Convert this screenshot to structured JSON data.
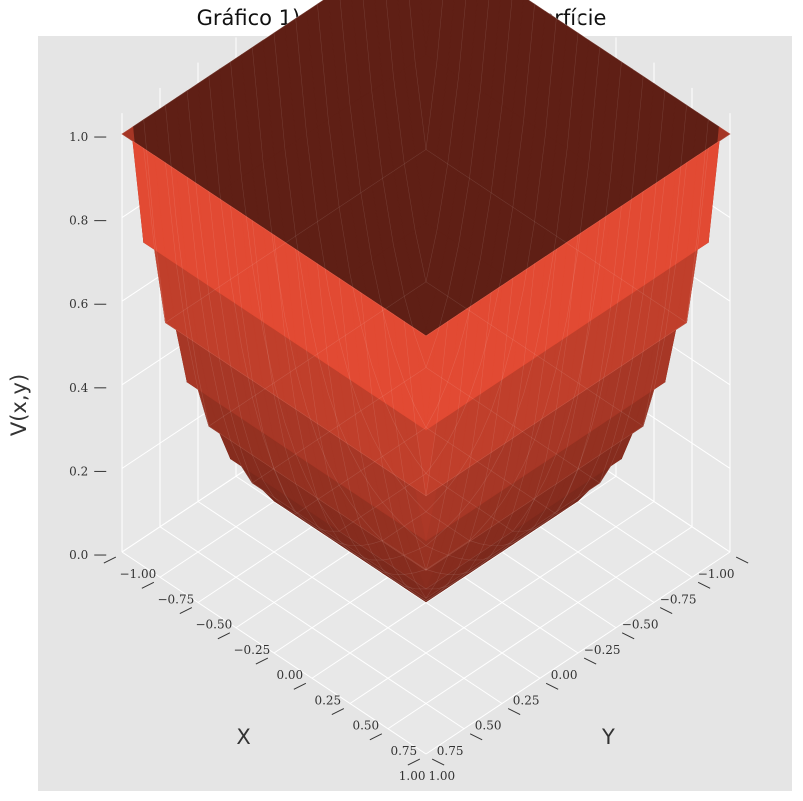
{
  "chart_data": {
    "type": "surface",
    "title": "Gráfico 1) Potencial elétrico: Superfície",
    "xlabel": "X",
    "ylabel": "Y",
    "zlabel": "V(x,y)",
    "xlim": [
      -1.0,
      1.0
    ],
    "ylim": [
      -1.0,
      1.0
    ],
    "zlim": [
      0.0,
      1.0
    ],
    "x_ticks": [
      "−1.00",
      "−0.75",
      "−0.50",
      "−0.25",
      "0.00",
      "0.25",
      "0.50",
      "0.75",
      "1.00"
    ],
    "y_ticks": [
      "−1.00",
      "−0.75",
      "−0.50",
      "−0.25",
      "0.00",
      "0.25",
      "0.50",
      "0.75",
      "1.00"
    ],
    "z_ticks": [
      "0.0",
      "0.2",
      "0.4",
      "0.6",
      "0.8",
      "1.0"
    ],
    "grid": true,
    "boundary_conditions": {
      "edges_value": 1.0,
      "bottom_value": 0.0
    },
    "surface_color": "#e24a33",
    "pane_color": "#e5e5e5"
  }
}
